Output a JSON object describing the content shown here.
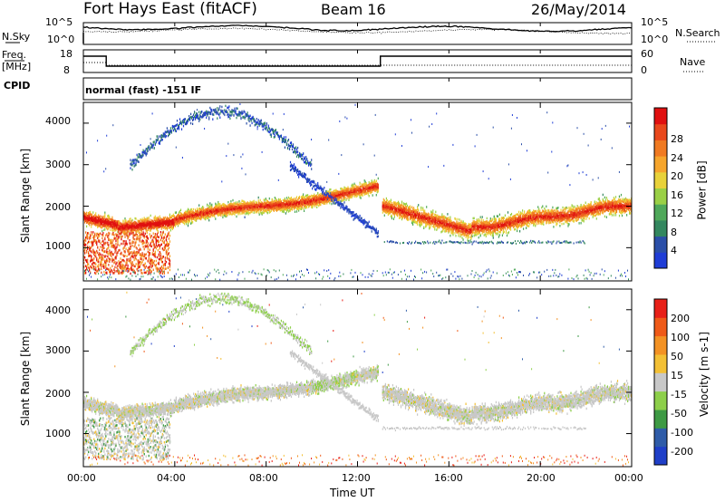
{
  "header": {
    "station": "Fort Hays East (fitACF)",
    "beam": "Beam 16",
    "date": "26/May/2014"
  },
  "left_labels": {
    "nsky": "N.Sky",
    "freq": "Freq.",
    "freq_unit": "[MHz]",
    "cpid": "CPID"
  },
  "right_labels": {
    "nsearch": "N.Search",
    "nave": "Nave"
  },
  "cpid_text": "normal (fast) -151 IF",
  "noise_axis": {
    "left_ticks": [
      "10^5",
      "10^0"
    ],
    "right_ticks": [
      "10^5",
      "10^0"
    ]
  },
  "freq_axis": {
    "left_ticks": [
      "18",
      "8"
    ],
    "right_ticks": [
      "60",
      "0"
    ]
  },
  "colors": {
    "power_scale": [
      "#1f3dd6",
      "#2b4fa8",
      "#33875f",
      "#4fa85a",
      "#9ad046",
      "#e8d23a",
      "#f6a52c",
      "#f07a22",
      "#e9481c",
      "#e01010"
    ],
    "velocity_scale": [
      "#e82018",
      "#ef5a18",
      "#f39224",
      "#f3c035",
      "#c8c8c8",
      "#8dcf4a",
      "#3e9a44",
      "#2f5ca8",
      "#1f3fc8"
    ]
  },
  "chart_data": [
    {
      "type": "heatmap",
      "name": "power-panel",
      "ylabel": "Slant Range [km]",
      "yticks": [
        "1000",
        "2000",
        "3000",
        "4000"
      ],
      "ylim": [
        200,
        4500
      ],
      "colorbar_label": "Power [dB]",
      "colorbar_ticks": [
        "4",
        "8",
        "12",
        "16",
        "20",
        "24",
        "28"
      ]
    },
    {
      "type": "heatmap",
      "name": "velocity-panel",
      "ylabel": "Slant Range [km]",
      "yticks": [
        "1000",
        "2000",
        "3000",
        "4000"
      ],
      "ylim": [
        200,
        4500
      ],
      "colorbar_label": "Velocity [m s-1]",
      "colorbar_ticks": [
        "200",
        "100",
        "50",
        "15",
        "-15",
        "-50",
        "-100",
        "-200"
      ],
      "xlabel": "Time UT",
      "xticks": [
        "00:00",
        "04:00",
        "08:00",
        "12:00",
        "16:00",
        "20:00",
        "00:00"
      ]
    }
  ]
}
